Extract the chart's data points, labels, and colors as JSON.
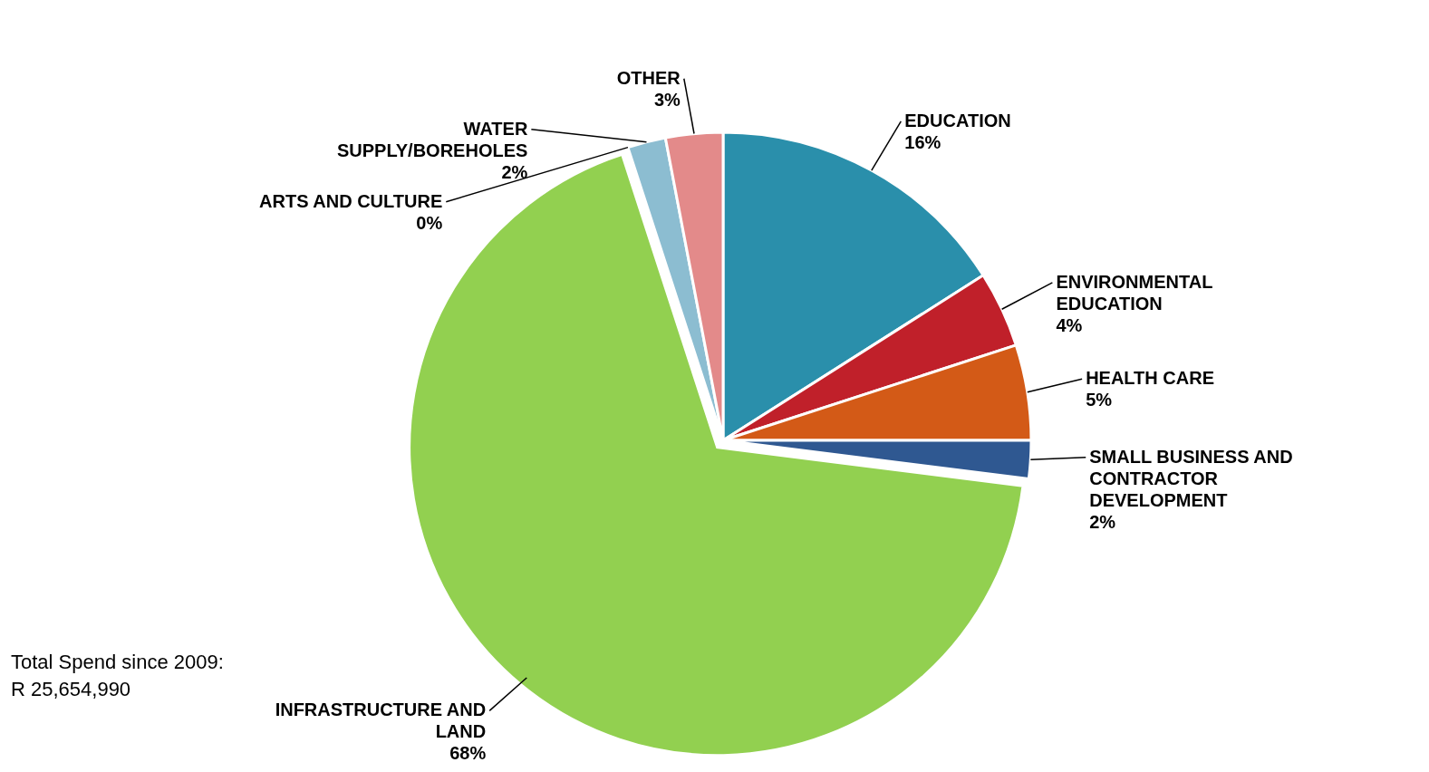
{
  "chart_data": {
    "type": "pie",
    "categories": [
      "EDUCATION",
      "ENVIRONMENTAL EDUCATION",
      "HEALTH CARE",
      "SMALL BUSINESS AND CONTRACTOR DEVELOPMENT",
      "INFRASTRUCTURE AND LAND",
      "ARTS AND CULTURE",
      "WATER SUPPLY/BOREHOLES",
      "OTHER"
    ],
    "values": [
      16,
      4,
      5,
      2,
      68,
      0,
      2,
      3
    ],
    "value_labels": [
      "16%",
      "4%",
      "5%",
      "2%",
      "68%",
      "0%",
      "2%",
      "3%"
    ],
    "colors": [
      "#2a8fab",
      "#c0202a",
      "#d35a17",
      "#2f5891",
      "#92d050",
      "#6b2a35",
      "#8cbdd1",
      "#e38a8a"
    ],
    "annotations": [
      "Total Spend since 2009:",
      "R 25,654,990"
    ]
  }
}
